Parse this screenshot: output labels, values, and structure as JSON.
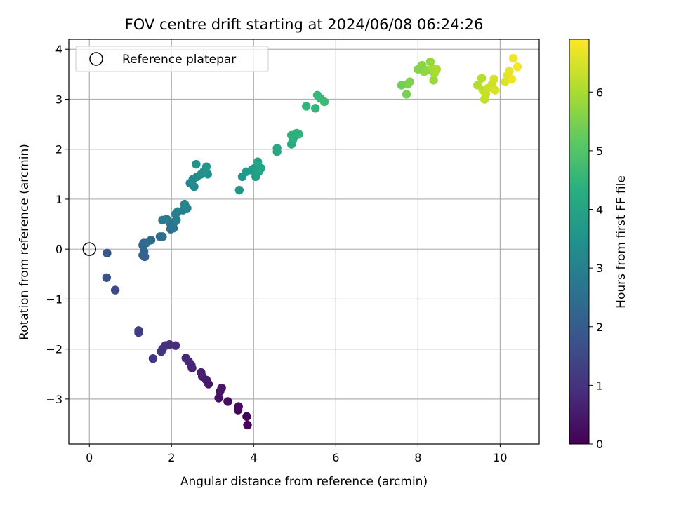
{
  "chart_data": {
    "type": "scatter",
    "title": "FOV centre drift starting at 2024/06/08 06:24:26",
    "xlabel": "Angular distance from reference (arcmin)",
    "ylabel": "Rotation from reference (arcmin)",
    "xlim": [
      -0.5,
      10.95
    ],
    "ylim": [
      -3.9,
      4.2
    ],
    "xticks": [
      0,
      2,
      4,
      6,
      8,
      10
    ],
    "yticks": [
      -3,
      -2,
      -1,
      0,
      1,
      2,
      3,
      4
    ],
    "grid": true,
    "legend": {
      "placement": "top-left",
      "entries": [
        {
          "label": "Reference platepar",
          "marker": "open-circle",
          "color": "#000000"
        }
      ]
    },
    "reference_point": {
      "x": 0,
      "y": 0
    },
    "colorbar": {
      "label": "Hours from first FF file",
      "colormap": "viridis",
      "range": [
        0,
        6.9
      ],
      "ticks": [
        0,
        1,
        2,
        3,
        4,
        5,
        6
      ]
    },
    "points": [
      {
        "x": 3.85,
        "y": -3.52,
        "c": 0.05
      },
      {
        "x": 3.83,
        "y": -3.35,
        "c": 0.1
      },
      {
        "x": 3.62,
        "y": -3.22,
        "c": 0.15
      },
      {
        "x": 3.63,
        "y": -3.15,
        "c": 0.2
      },
      {
        "x": 3.37,
        "y": -3.05,
        "c": 0.25
      },
      {
        "x": 3.15,
        "y": -2.98,
        "c": 0.3
      },
      {
        "x": 3.18,
        "y": -2.85,
        "c": 0.35
      },
      {
        "x": 3.22,
        "y": -2.78,
        "c": 0.4
      },
      {
        "x": 2.9,
        "y": -2.7,
        "c": 0.45
      },
      {
        "x": 2.85,
        "y": -2.62,
        "c": 0.5
      },
      {
        "x": 2.75,
        "y": -2.55,
        "c": 0.55
      },
      {
        "x": 2.72,
        "y": -2.47,
        "c": 0.6
      },
      {
        "x": 2.5,
        "y": -2.38,
        "c": 0.65
      },
      {
        "x": 2.48,
        "y": -2.32,
        "c": 0.7
      },
      {
        "x": 2.42,
        "y": -2.25,
        "c": 0.75
      },
      {
        "x": 2.35,
        "y": -2.18,
        "c": 0.8
      },
      {
        "x": 2.1,
        "y": -1.93,
        "c": 0.85
      },
      {
        "x": 1.95,
        "y": -1.91,
        "c": 0.9
      },
      {
        "x": 1.85,
        "y": -1.93,
        "c": 0.95
      },
      {
        "x": 1.78,
        "y": -2.0,
        "c": 1.0
      },
      {
        "x": 1.75,
        "y": -2.05,
        "c": 1.05
      },
      {
        "x": 1.55,
        "y": -2.19,
        "c": 1.1
      },
      {
        "x": 1.2,
        "y": -1.63,
        "c": 1.2
      },
      {
        "x": 1.2,
        "y": -1.67,
        "c": 1.25
      },
      {
        "x": 0.63,
        "y": -0.82,
        "c": 1.5
      },
      {
        "x": 0.42,
        "y": -0.57,
        "c": 1.7
      },
      {
        "x": 0.43,
        "y": -0.08,
        "c": 1.9
      },
      {
        "x": 1.35,
        "y": -0.15,
        "c": 2.1
      },
      {
        "x": 1.3,
        "y": -0.12,
        "c": 2.15
      },
      {
        "x": 1.33,
        "y": -0.05,
        "c": 2.2
      },
      {
        "x": 1.3,
        "y": 0.08,
        "c": 2.25
      },
      {
        "x": 1.38,
        "y": 0.12,
        "c": 2.3
      },
      {
        "x": 1.32,
        "y": 0.12,
        "c": 2.35
      },
      {
        "x": 1.5,
        "y": 0.18,
        "c": 2.4
      },
      {
        "x": 1.72,
        "y": 0.25,
        "c": 2.45
      },
      {
        "x": 1.78,
        "y": 0.25,
        "c": 2.5
      },
      {
        "x": 1.98,
        "y": 0.4,
        "c": 2.55
      },
      {
        "x": 2.02,
        "y": 0.45,
        "c": 2.6
      },
      {
        "x": 1.98,
        "y": 0.5,
        "c": 2.65
      },
      {
        "x": 2.05,
        "y": 0.42,
        "c": 2.7
      },
      {
        "x": 2.08,
        "y": 0.55,
        "c": 2.75
      },
      {
        "x": 1.78,
        "y": 0.58,
        "c": 2.8
      },
      {
        "x": 1.88,
        "y": 0.6,
        "c": 2.85
      },
      {
        "x": 2.12,
        "y": 0.58,
        "c": 2.9
      },
      {
        "x": 2.1,
        "y": 0.7,
        "c": 2.95
      },
      {
        "x": 2.15,
        "y": 0.75,
        "c": 3.0
      },
      {
        "x": 2.28,
        "y": 0.78,
        "c": 3.05
      },
      {
        "x": 2.38,
        "y": 0.82,
        "c": 3.1
      },
      {
        "x": 2.32,
        "y": 0.9,
        "c": 3.15
      },
      {
        "x": 2.45,
        "y": 1.32,
        "c": 3.2
      },
      {
        "x": 2.52,
        "y": 1.4,
        "c": 3.25
      },
      {
        "x": 2.55,
        "y": 1.25,
        "c": 3.3
      },
      {
        "x": 2.62,
        "y": 1.45,
        "c": 3.35
      },
      {
        "x": 2.72,
        "y": 1.5,
        "c": 3.4
      },
      {
        "x": 2.78,
        "y": 1.55,
        "c": 3.45
      },
      {
        "x": 2.88,
        "y": 1.5,
        "c": 3.5
      },
      {
        "x": 2.6,
        "y": 1.7,
        "c": 3.55
      },
      {
        "x": 2.85,
        "y": 1.65,
        "c": 3.6
      },
      {
        "x": 3.65,
        "y": 1.18,
        "c": 3.65
      },
      {
        "x": 3.72,
        "y": 1.45,
        "c": 3.7
      },
      {
        "x": 3.82,
        "y": 1.55,
        "c": 3.75
      },
      {
        "x": 3.95,
        "y": 1.58,
        "c": 3.8
      },
      {
        "x": 4.02,
        "y": 1.62,
        "c": 3.85
      },
      {
        "x": 4.05,
        "y": 1.45,
        "c": 3.9
      },
      {
        "x": 4.12,
        "y": 1.55,
        "c": 3.95
      },
      {
        "x": 4.18,
        "y": 1.62,
        "c": 4.0
      },
      {
        "x": 4.1,
        "y": 1.75,
        "c": 4.05
      },
      {
        "x": 4.57,
        "y": 1.95,
        "c": 4.1
      },
      {
        "x": 4.57,
        "y": 2.02,
        "c": 4.15
      },
      {
        "x": 4.92,
        "y": 2.1,
        "c": 4.2
      },
      {
        "x": 4.95,
        "y": 2.18,
        "c": 4.25
      },
      {
        "x": 4.98,
        "y": 2.25,
        "c": 4.3
      },
      {
        "x": 4.92,
        "y": 2.28,
        "c": 4.35
      },
      {
        "x": 5.05,
        "y": 2.32,
        "c": 4.4
      },
      {
        "x": 5.1,
        "y": 2.3,
        "c": 4.45
      },
      {
        "x": 5.28,
        "y": 2.86,
        "c": 4.5
      },
      {
        "x": 5.5,
        "y": 2.82,
        "c": 4.55
      },
      {
        "x": 5.55,
        "y": 3.08,
        "c": 4.6
      },
      {
        "x": 5.62,
        "y": 3.02,
        "c": 4.65
      },
      {
        "x": 5.72,
        "y": 2.95,
        "c": 4.7
      },
      {
        "x": 7.6,
        "y": 3.28,
        "c": 5.4
      },
      {
        "x": 7.72,
        "y": 3.1,
        "c": 5.45
      },
      {
        "x": 7.75,
        "y": 3.3,
        "c": 5.5
      },
      {
        "x": 7.8,
        "y": 3.35,
        "c": 5.55
      },
      {
        "x": 8.0,
        "y": 3.6,
        "c": 5.6
      },
      {
        "x": 8.1,
        "y": 3.68,
        "c": 5.65
      },
      {
        "x": 8.15,
        "y": 3.55,
        "c": 5.7
      },
      {
        "x": 8.22,
        "y": 3.58,
        "c": 5.75
      },
      {
        "x": 8.3,
        "y": 3.75,
        "c": 5.8
      },
      {
        "x": 8.38,
        "y": 3.38,
        "c": 5.85
      },
      {
        "x": 8.35,
        "y": 3.62,
        "c": 5.9
      },
      {
        "x": 8.4,
        "y": 3.52,
        "c": 5.95
      },
      {
        "x": 8.45,
        "y": 3.6,
        "c": 6.0
      },
      {
        "x": 9.45,
        "y": 3.28,
        "c": 6.1
      },
      {
        "x": 9.55,
        "y": 3.42,
        "c": 6.15
      },
      {
        "x": 9.58,
        "y": 3.18,
        "c": 6.2
      },
      {
        "x": 9.62,
        "y": 3.0,
        "c": 6.25
      },
      {
        "x": 9.65,
        "y": 3.1,
        "c": 6.3
      },
      {
        "x": 9.7,
        "y": 3.22,
        "c": 6.35
      },
      {
        "x": 9.8,
        "y": 3.3,
        "c": 6.4
      },
      {
        "x": 9.85,
        "y": 3.4,
        "c": 6.45
      },
      {
        "x": 9.88,
        "y": 3.18,
        "c": 6.5
      },
      {
        "x": 10.12,
        "y": 3.35,
        "c": 6.55
      },
      {
        "x": 10.18,
        "y": 3.48,
        "c": 6.6
      },
      {
        "x": 10.22,
        "y": 3.56,
        "c": 6.65
      },
      {
        "x": 10.28,
        "y": 3.4,
        "c": 6.7
      },
      {
        "x": 10.32,
        "y": 3.82,
        "c": 6.75
      },
      {
        "x": 10.42,
        "y": 3.65,
        "c": 6.85
      }
    ]
  }
}
